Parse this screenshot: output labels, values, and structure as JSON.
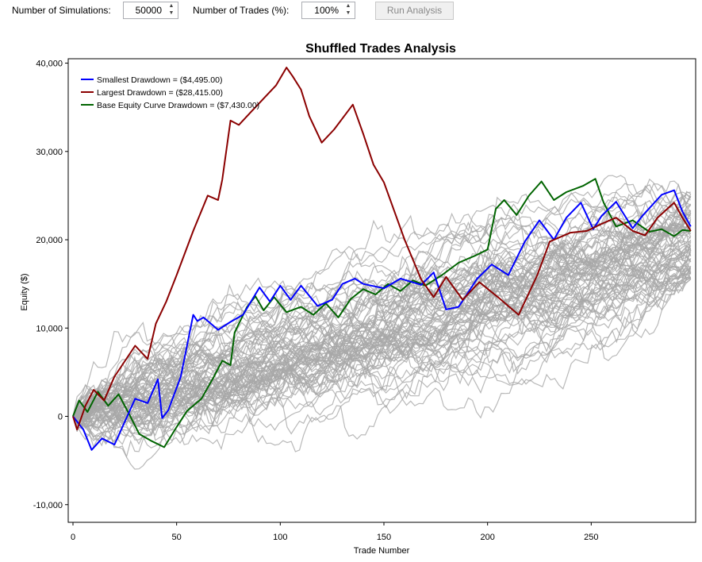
{
  "controls": {
    "simulations_label": "Number of Simulations:",
    "simulations_value": "50000",
    "trades_label": "Number of Trades (%):",
    "trades_value": "100%",
    "run_button": "Run Analysis"
  },
  "colors": {
    "background_series": "#a8a8a8",
    "smallest": "#0000ff",
    "largest": "#8b0000",
    "base": "#006400"
  },
  "chart_data": {
    "type": "line",
    "title": "Shuffled Trades Analysis",
    "xlabel": "Trade Number",
    "ylabel": "Equity ($)",
    "xlim": [
      0,
      300
    ],
    "ylim": [
      -12000,
      40500
    ],
    "xticks": [
      0,
      50,
      100,
      150,
      200,
      250
    ],
    "yticks": [
      -10000,
      0,
      10000,
      20000,
      30000,
      40000
    ],
    "ytick_labels": [
      "-10,000",
      "0",
      "10,000",
      "20,000",
      "30,000",
      "40,000"
    ],
    "legend_position": "top-left",
    "background_series_count": 80,
    "background_final_range": [
      15500,
      25500
    ],
    "series": [
      {
        "name": "Smallest Drawdown = ($4,495.00)",
        "color": "#0000ff",
        "x": [
          0,
          5,
          9,
          14,
          20,
          30,
          36,
          41,
          43,
          46,
          52,
          58,
          60,
          63,
          70,
          76,
          82,
          90,
          95,
          100,
          105,
          110,
          118,
          125,
          130,
          136,
          140,
          150,
          158,
          168,
          174,
          180,
          186,
          190,
          195,
          202,
          210,
          218,
          225,
          232,
          238,
          245,
          251,
          255,
          262,
          270,
          275,
          284,
          290,
          294,
          298
        ],
        "y": [
          0,
          -1500,
          -3800,
          -2500,
          -3200,
          2000,
          1500,
          4200,
          -200,
          700,
          4500,
          11500,
          10800,
          11200,
          9800,
          10700,
          11500,
          14600,
          13000,
          14800,
          13200,
          14800,
          12500,
          13200,
          15000,
          15600,
          15000,
          14500,
          15600,
          14900,
          16300,
          12100,
          12400,
          13800,
          15600,
          17200,
          16000,
          19800,
          22200,
          20000,
          22500,
          24200,
          21200,
          22700,
          24300,
          21300,
          22800,
          25100,
          25600,
          23200,
          21500
        ]
      },
      {
        "name": "Largest Drawdown = ($28,415.00)",
        "color": "#8b0000",
        "x": [
          0,
          2,
          6,
          10,
          15,
          20,
          30,
          36,
          40,
          45,
          50,
          58,
          65,
          70,
          72,
          76,
          80,
          86,
          92,
          98,
          103,
          106,
          110,
          114,
          120,
          126,
          135,
          140,
          145,
          150,
          160,
          168,
          174,
          180,
          188,
          196,
          205,
          210,
          215,
          224,
          230,
          240,
          248,
          255,
          262,
          270,
          276,
          282,
          290,
          294,
          298
        ],
        "y": [
          0,
          -1500,
          1200,
          3000,
          1800,
          4500,
          8000,
          6500,
          10500,
          13000,
          16000,
          21000,
          25000,
          24500,
          26800,
          33500,
          33000,
          34500,
          36000,
          37500,
          39500,
          38500,
          37000,
          34000,
          31000,
          32500,
          35300,
          32000,
          28500,
          26500,
          20000,
          15500,
          13500,
          15800,
          13200,
          15200,
          13500,
          12500,
          11500,
          16000,
          19800,
          20800,
          21000,
          21800,
          22500,
          21000,
          20500,
          22500,
          24200,
          22500,
          21000
        ]
      },
      {
        "name": "Base Equity Curve Drawdown = ($7,430.00)",
        "color": "#006400",
        "x": [
          0,
          3,
          7,
          12,
          17,
          22,
          27,
          32,
          38,
          44,
          50,
          55,
          62,
          68,
          72,
          76,
          78,
          84,
          88,
          92,
          97,
          103,
          110,
          116,
          122,
          128,
          134,
          140,
          146,
          152,
          158,
          164,
          170,
          178,
          186,
          194,
          200,
          204,
          208,
          214,
          220,
          226,
          232,
          238,
          246,
          252,
          256,
          262,
          270,
          278,
          284,
          290,
          294,
          298
        ],
        "y": [
          0,
          1800,
          500,
          2800,
          1200,
          2500,
          300,
          -2000,
          -2800,
          -3500,
          -1200,
          600,
          2000,
          4500,
          6300,
          5800,
          9500,
          12400,
          13600,
          12000,
          13500,
          11800,
          12400,
          11500,
          12800,
          11200,
          13300,
          14400,
          13800,
          15000,
          14200,
          15400,
          14800,
          16000,
          17400,
          18200,
          18900,
          23500,
          24500,
          22800,
          25000,
          26600,
          24500,
          25400,
          26100,
          26900,
          24200,
          21500,
          22200,
          20900,
          21200,
          20400,
          21100,
          21000
        ]
      }
    ]
  }
}
